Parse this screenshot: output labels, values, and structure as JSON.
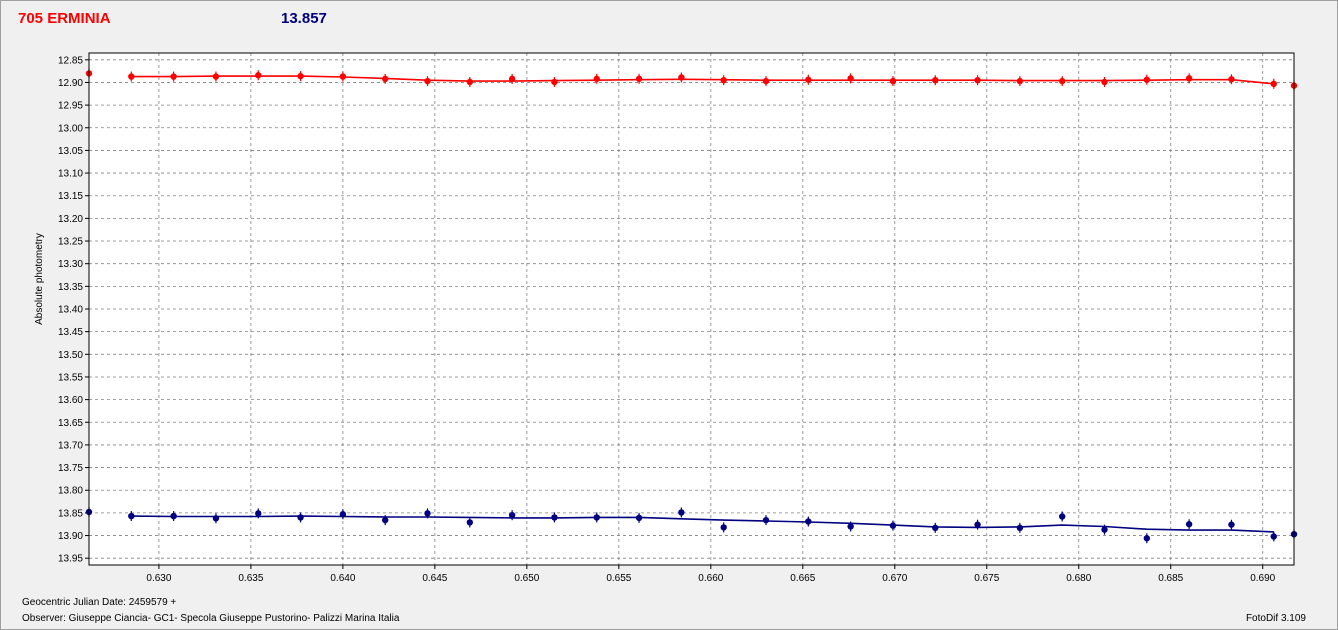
{
  "header": {
    "object_name": "705 ERMINIA",
    "comparison_mag": "13.857"
  },
  "footer": {
    "date_label": "Geocentric Julian Date: 2459579 +",
    "observer": "Observer: Giuseppe Ciancia- GC1- Specola Giuseppe Pustorino- Palizzi Marina Italia",
    "software": "FotoDif 3.109"
  },
  "chart_data": {
    "type": "scatter",
    "ylabel": "Absolute photometry",
    "xlim": [
      0.6262,
      0.6917
    ],
    "ylim": [
      12.835,
      13.965
    ],
    "y_inverted": true,
    "grid": true,
    "x_ticks": [
      "0.630",
      "0.635",
      "0.640",
      "0.645",
      "0.650",
      "0.655",
      "0.660",
      "0.665",
      "0.670",
      "0.675",
      "0.680",
      "0.685",
      "0.690"
    ],
    "y_ticks": [
      "12.85",
      "12.90",
      "12.95",
      "13.00",
      "13.05",
      "13.10",
      "13.15",
      "13.20",
      "13.25",
      "13.30",
      "13.35",
      "13.40",
      "13.45",
      "13.50",
      "13.55",
      "13.60",
      "13.65",
      "13.70",
      "13.75",
      "13.80",
      "13.85",
      "13.90",
      "13.95"
    ],
    "series": [
      {
        "color": "#ff0000",
        "x": [
          0.6262,
          0.6285,
          0.6308,
          0.6331,
          0.6354,
          0.6377,
          0.64,
          0.6423,
          0.6446,
          0.6469,
          0.6492,
          0.6515,
          0.6538,
          0.6561,
          0.6584,
          0.6607,
          0.663,
          0.6653,
          0.6676,
          0.6699,
          0.6722,
          0.6745,
          0.6768,
          0.6791,
          0.6814,
          0.6837,
          0.686,
          0.6883,
          0.6906,
          0.6917
        ],
        "y": [
          12.88,
          12.887,
          12.887,
          12.887,
          12.884,
          12.886,
          12.887,
          12.892,
          12.897,
          12.899,
          12.892,
          12.899,
          12.892,
          12.892,
          12.889,
          12.895,
          12.897,
          12.894,
          12.891,
          12.897,
          12.895,
          12.895,
          12.897,
          12.897,
          12.899,
          12.894,
          12.891,
          12.893,
          12.903,
          12.907
        ],
        "fit": [
          12.887,
          12.887,
          12.886,
          12.886,
          12.886,
          12.888,
          12.891,
          12.895,
          12.897,
          12.897,
          12.896,
          12.895,
          12.894,
          12.893,
          12.894,
          12.895,
          12.895,
          12.895,
          12.895,
          12.895,
          12.895,
          12.896,
          12.896,
          12.896,
          12.895,
          12.894,
          12.894,
          12.903
        ]
      },
      {
        "color": "#000080",
        "x": [
          0.6262,
          0.6285,
          0.6308,
          0.6331,
          0.6354,
          0.6377,
          0.64,
          0.6423,
          0.6446,
          0.6469,
          0.6492,
          0.6515,
          0.6538,
          0.6561,
          0.6584,
          0.6607,
          0.663,
          0.6653,
          0.6676,
          0.6699,
          0.6722,
          0.6745,
          0.6768,
          0.6791,
          0.6814,
          0.6837,
          0.686,
          0.6883,
          0.6906,
          0.6917
        ],
        "y": [
          13.848,
          13.857,
          13.857,
          13.862,
          13.851,
          13.86,
          13.853,
          13.866,
          13.851,
          13.871,
          13.855,
          13.86,
          13.86,
          13.861,
          13.849,
          13.882,
          13.866,
          13.869,
          13.88,
          13.878,
          13.883,
          13.876,
          13.883,
          13.858,
          13.887,
          13.906,
          13.875,
          13.876,
          13.902,
          13.897
        ],
        "fit": [
          13.857,
          13.858,
          13.858,
          13.858,
          13.857,
          13.858,
          13.859,
          13.859,
          13.86,
          13.861,
          13.861,
          13.86,
          13.86,
          13.863,
          13.866,
          13.868,
          13.87,
          13.873,
          13.877,
          13.881,
          13.882,
          13.881,
          13.877,
          13.88,
          13.886,
          13.888,
          13.888,
          13.892
        ]
      }
    ]
  }
}
